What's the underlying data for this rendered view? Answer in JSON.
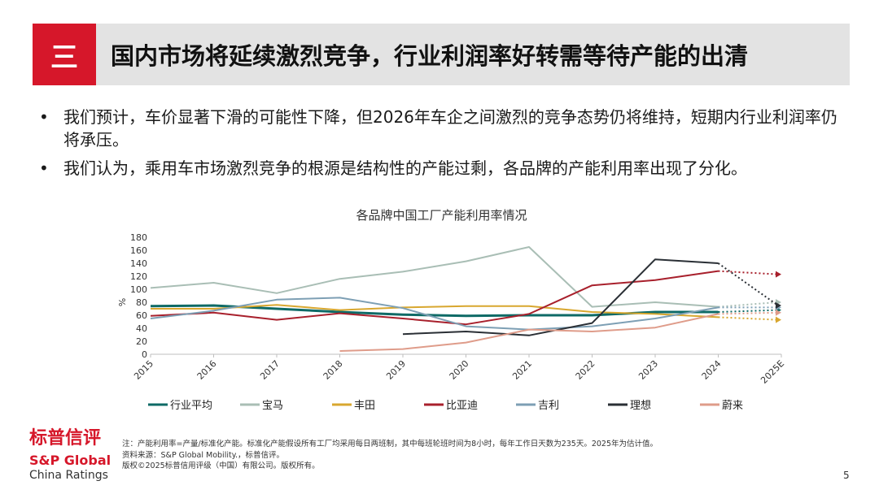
{
  "header": {
    "section_number": "三",
    "title": "国内市场将延续激烈竞争，行业利润率好转需等待产能的出清"
  },
  "bullets": [
    "我们预计，车价显著下滑的可能性下降，但2026年车企之间激烈的竞争态势仍将维持，短期内行业利润率仍将承压。",
    "我们认为，乘用车市场激烈竞争的根源是结构性的产能过剩，各品牌的产能利用率出现了分化。"
  ],
  "chart_data": {
    "type": "line",
    "title": "各品牌中国工厂产能利用率情况",
    "ylabel": "%",
    "xlabel": "",
    "ylim": [
      0,
      180
    ],
    "yticks": [
      0,
      20,
      40,
      60,
      80,
      100,
      120,
      140,
      160,
      180
    ],
    "categories": [
      "2015",
      "2016",
      "2017",
      "2018",
      "2019",
      "2020",
      "2021",
      "2022",
      "2023",
      "2024",
      "2025E"
    ],
    "forecast_from_index": 9,
    "grid": false,
    "legend_position": "bottom",
    "series": [
      {
        "name": "行业平均",
        "color": "#0e6a66",
        "width": 3,
        "values": [
          74,
          75,
          70,
          65,
          61,
          59,
          60,
          60,
          65,
          65,
          68
        ]
      },
      {
        "name": "宝马",
        "color": "#a9beb5",
        "width": 2,
        "values": [
          102,
          110,
          94,
          116,
          127,
          143,
          165,
          73,
          80,
          73,
          80
        ]
      },
      {
        "name": "丰田",
        "color": "#d8a72f",
        "width": 2,
        "values": [
          70,
          70,
          76,
          68,
          72,
          74,
          74,
          65,
          62,
          57,
          53
        ]
      },
      {
        "name": "比亚迪",
        "color": "#a8202c",
        "width": 2,
        "values": [
          59,
          64,
          53,
          63,
          55,
          46,
          62,
          106,
          114,
          128,
          123
        ]
      },
      {
        "name": "吉利",
        "color": "#7d9fb4",
        "width": 2,
        "values": [
          55,
          67,
          84,
          87,
          71,
          43,
          38,
          43,
          55,
          72,
          72
        ]
      },
      {
        "name": "理想",
        "color": "#2a2f35",
        "width": 2,
        "values": [
          null,
          null,
          null,
          null,
          31,
          35,
          29,
          48,
          146,
          140,
          75
        ]
      },
      {
        "name": "蔚来",
        "color": "#df9c8a",
        "width": 2,
        "values": [
          null,
          null,
          null,
          5,
          8,
          18,
          38,
          35,
          41,
          62,
          64
        ]
      }
    ]
  },
  "footer": {
    "logo_line1": "标普信评",
    "logo_line2": "S&P Global",
    "logo_line3": "China Ratings",
    "notes": [
      "注：产能利用率=产量/标准化产能。标准化产能假设所有工厂均采用每日两班制，其中每班轮班时间为8小时，每年工作日天数为235天。2025年为估计值。",
      "资料来源：S&P Global Mobility.，标普信评。",
      "版权©2025标普信用评级（中国）有限公司。版权所有。"
    ],
    "page_number": "5"
  }
}
